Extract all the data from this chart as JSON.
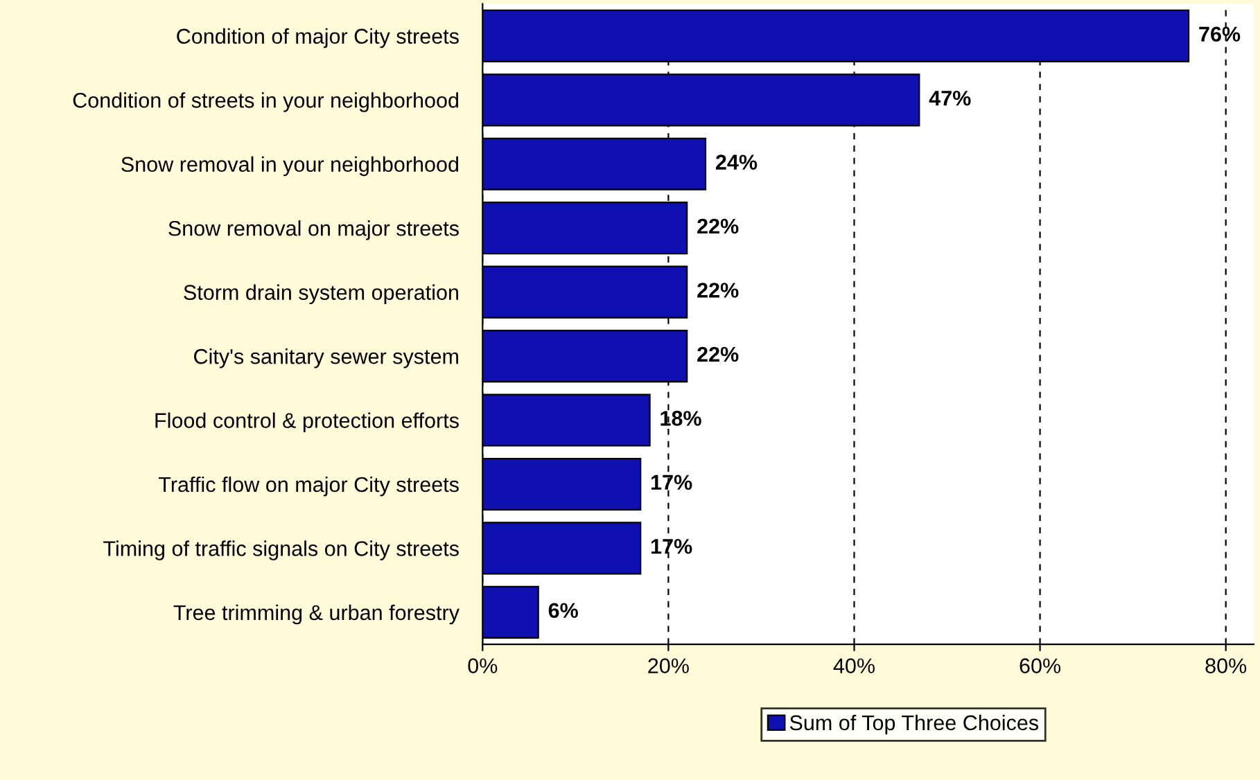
{
  "chart_data": {
    "type": "bar",
    "orientation": "horizontal",
    "categories": [
      "Condition of major City streets",
      "Condition of streets in your neighborhood",
      "Snow removal in your neighborhood",
      "Snow removal on major streets",
      "Storm drain system operation",
      "City's sanitary sewer system",
      "Flood control & protection efforts",
      "Traffic flow on major City streets",
      "Timing of traffic signals on City streets",
      "Tree trimming & urban forestry"
    ],
    "series": [
      {
        "name": "Sum of Top Three Choices",
        "color": "#1010b0",
        "values": [
          76,
          47,
          24,
          22,
          22,
          22,
          18,
          17,
          17,
          6
        ],
        "value_labels": [
          "76%",
          "47%",
          "24%",
          "22%",
          "22%",
          "22%",
          "18%",
          "17%",
          "17%",
          "6%"
        ]
      }
    ],
    "xlim": [
      0,
      83
    ],
    "xticks": [
      {
        "value": 0,
        "label": "0%"
      },
      {
        "value": 20,
        "label": "20%"
      },
      {
        "value": 40,
        "label": "40%"
      },
      {
        "value": 60,
        "label": "60%"
      },
      {
        "value": 80,
        "label": "80%"
      }
    ],
    "grid": "x",
    "legend": "bottom"
  }
}
